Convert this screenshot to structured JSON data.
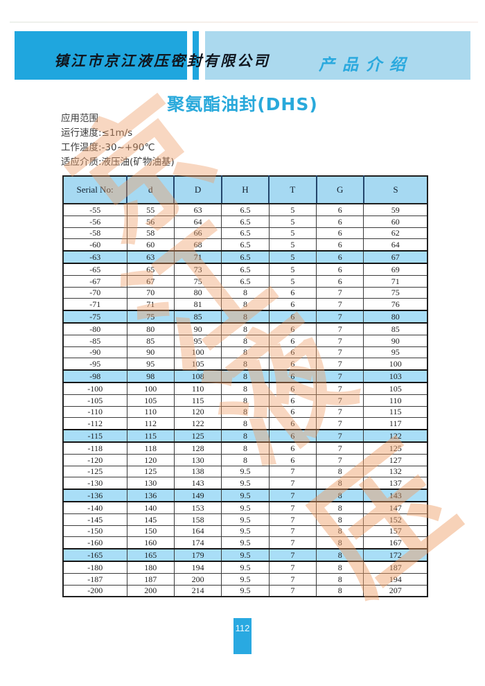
{
  "header": {
    "company_name": "镇江市京江液压密封有限公司",
    "section_title": "产品介绍"
  },
  "doc": {
    "title": "聚氨酯油封(DHS)",
    "page_number": "112"
  },
  "specs": {
    "lines": [
      "应用范围",
      "运行速度:≤1m/s",
      "工作温度:-30~+90℃",
      "适应介质:液压油(矿物油基)"
    ]
  },
  "watermark": {
    "characters": [
      "京",
      "江",
      "液",
      "压"
    ],
    "color": "#ef9e66"
  },
  "colors": {
    "banner_dark_blue": "#1fa6de",
    "banner_light_blue": "#abd9ee",
    "table_header_blue": "#a6d9f2",
    "row_highlight_blue": "#a9def7",
    "accent_cyan": "#29a9db",
    "page_box_blue": "#29a9e1"
  },
  "table": {
    "columns": [
      "Serial No:",
      "d",
      "D",
      "H",
      "T",
      "G",
      "S"
    ],
    "rows": [
      {
        "values": [
          "-55",
          "55",
          "63",
          "6.5",
          "5",
          "6",
          "59"
        ],
        "highlighted": false
      },
      {
        "values": [
          "-56",
          "56",
          "64",
          "6.5",
          "5",
          "6",
          "60"
        ],
        "highlighted": false
      },
      {
        "values": [
          "-58",
          "58",
          "66",
          "6.5",
          "5",
          "6",
          "62"
        ],
        "highlighted": false
      },
      {
        "values": [
          "-60",
          "60",
          "68",
          "6.5",
          "5",
          "6",
          "64"
        ],
        "highlighted": false
      },
      {
        "values": [
          "-63",
          "63",
          "71",
          "6.5",
          "5",
          "6",
          "67"
        ],
        "highlighted": true
      },
      {
        "values": [
          "-65",
          "65",
          "73",
          "6.5",
          "5",
          "6",
          "69"
        ],
        "highlighted": false
      },
      {
        "values": [
          "-67",
          "67",
          "75",
          "6.5",
          "5",
          "6",
          "71"
        ],
        "highlighted": false
      },
      {
        "values": [
          "-70",
          "70",
          "80",
          "8",
          "6",
          "7",
          "75"
        ],
        "highlighted": false
      },
      {
        "values": [
          "-71",
          "71",
          "81",
          "8",
          "6",
          "7",
          "76"
        ],
        "highlighted": false
      },
      {
        "values": [
          "-75",
          "75",
          "85",
          "8",
          "6",
          "7",
          "80"
        ],
        "highlighted": true
      },
      {
        "values": [
          "-80",
          "80",
          "90",
          "8",
          "6",
          "7",
          "85"
        ],
        "highlighted": false
      },
      {
        "values": [
          "-85",
          "85",
          "95",
          "8",
          "6",
          "7",
          "90"
        ],
        "highlighted": false
      },
      {
        "values": [
          "-90",
          "90",
          "100",
          "8",
          "6",
          "7",
          "95"
        ],
        "highlighted": false
      },
      {
        "values": [
          "-95",
          "95",
          "105",
          "8",
          "6",
          "7",
          "100"
        ],
        "highlighted": false
      },
      {
        "values": [
          "-98",
          "98",
          "108",
          "8",
          "6",
          "7",
          "103"
        ],
        "highlighted": true
      },
      {
        "values": [
          "-100",
          "100",
          "110",
          "8",
          "6",
          "7",
          "105"
        ],
        "highlighted": false
      },
      {
        "values": [
          "-105",
          "105",
          "115",
          "8",
          "6",
          "7",
          "110"
        ],
        "highlighted": false
      },
      {
        "values": [
          "-110",
          "110",
          "120",
          "8",
          "6",
          "7",
          "115"
        ],
        "highlighted": false
      },
      {
        "values": [
          "-112",
          "112",
          "122",
          "8",
          "6",
          "7",
          "117"
        ],
        "highlighted": false
      },
      {
        "values": [
          "-115",
          "115",
          "125",
          "8",
          "6",
          "7",
          "122"
        ],
        "highlighted": true
      },
      {
        "values": [
          "-118",
          "118",
          "128",
          "8",
          "6",
          "7",
          "125"
        ],
        "highlighted": false
      },
      {
        "values": [
          "-120",
          "120",
          "130",
          "8",
          "6",
          "7",
          "127"
        ],
        "highlighted": false
      },
      {
        "values": [
          "-125",
          "125",
          "138",
          "9.5",
          "7",
          "8",
          "132"
        ],
        "highlighted": false
      },
      {
        "values": [
          "-130",
          "130",
          "143",
          "9.5",
          "7",
          "8",
          "137"
        ],
        "highlighted": false
      },
      {
        "values": [
          "-136",
          "136",
          "149",
          "9.5",
          "7",
          "8",
          "143"
        ],
        "highlighted": true
      },
      {
        "values": [
          "-140",
          "140",
          "153",
          "9.5",
          "7",
          "8",
          "147"
        ],
        "highlighted": false
      },
      {
        "values": [
          "-145",
          "145",
          "158",
          "9.5",
          "7",
          "8",
          "152"
        ],
        "highlighted": false
      },
      {
        "values": [
          "-150",
          "150",
          "164",
          "9.5",
          "7",
          "8",
          "157"
        ],
        "highlighted": false
      },
      {
        "values": [
          "-160",
          "160",
          "174",
          "9.5",
          "7",
          "8",
          "167"
        ],
        "highlighted": false
      },
      {
        "values": [
          "-165",
          "165",
          "179",
          "9.5",
          "7",
          "8",
          "172"
        ],
        "highlighted": true
      },
      {
        "values": [
          "-180",
          "180",
          "194",
          "9.5",
          "7",
          "8",
          "187"
        ],
        "highlighted": false
      },
      {
        "values": [
          "-187",
          "187",
          "200",
          "9.5",
          "7",
          "8",
          "194"
        ],
        "highlighted": false
      },
      {
        "values": [
          "-200",
          "200",
          "214",
          "9.5",
          "7",
          "8",
          "207"
        ],
        "highlighted": false
      }
    ]
  }
}
